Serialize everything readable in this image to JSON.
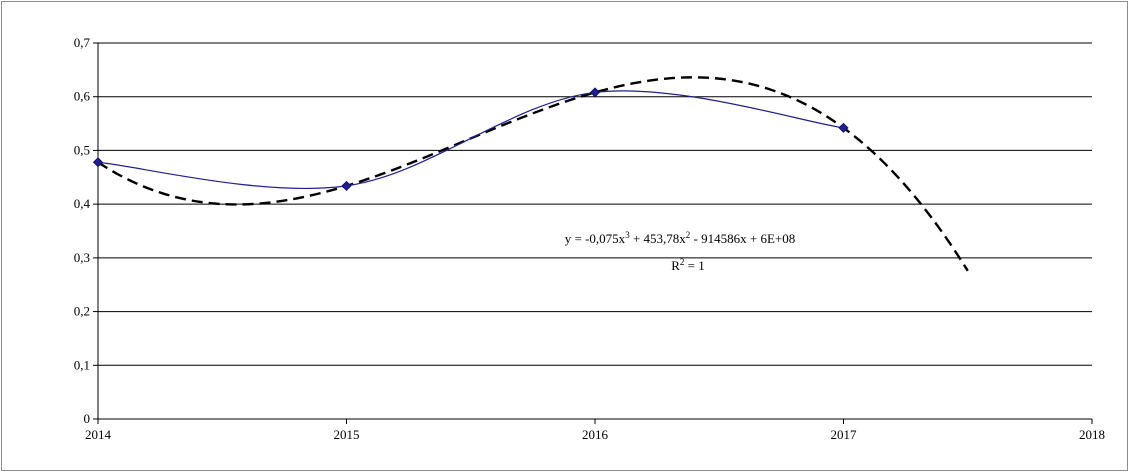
{
  "chart_data": {
    "type": "line",
    "x": [
      2014,
      2015,
      2016,
      2017
    ],
    "series": [
      {
        "values": [
          0.478,
          0.434,
          0.608,
          0.542
        ],
        "color": "#1f1f8f",
        "marker": "diamond"
      }
    ],
    "trendline": {
      "kind": "polynomial-3",
      "coefficients": {
        "a3": -0.075,
        "a2": 453.78,
        "a1": -914586,
        "a0": "6E+08"
      },
      "extends_to_x": 2017.5,
      "style": "dashed",
      "color": "#000000",
      "equation_label": {
        "prefix": "y = -0,075x",
        "exp3": "3",
        "middle": " + 453,78x",
        "exp2": "2",
        "suffix": " - 914586x + 6E+08"
      },
      "r2_label": {
        "prefix": "R",
        "exp": "2",
        "suffix": " = 1"
      }
    },
    "xlim": [
      2014,
      2018
    ],
    "ylim": [
      0,
      0.7
    ],
    "x_ticks": [
      "2014",
      "2015",
      "2016",
      "2017",
      "2018"
    ],
    "y_ticks": [
      "0",
      "0,1",
      "0,2",
      "0,3",
      "0,4",
      "0,5",
      "0,6",
      "0,7"
    ],
    "grid": "horizontal",
    "legend": "none",
    "title": "",
    "xlabel": "",
    "ylabel": ""
  }
}
